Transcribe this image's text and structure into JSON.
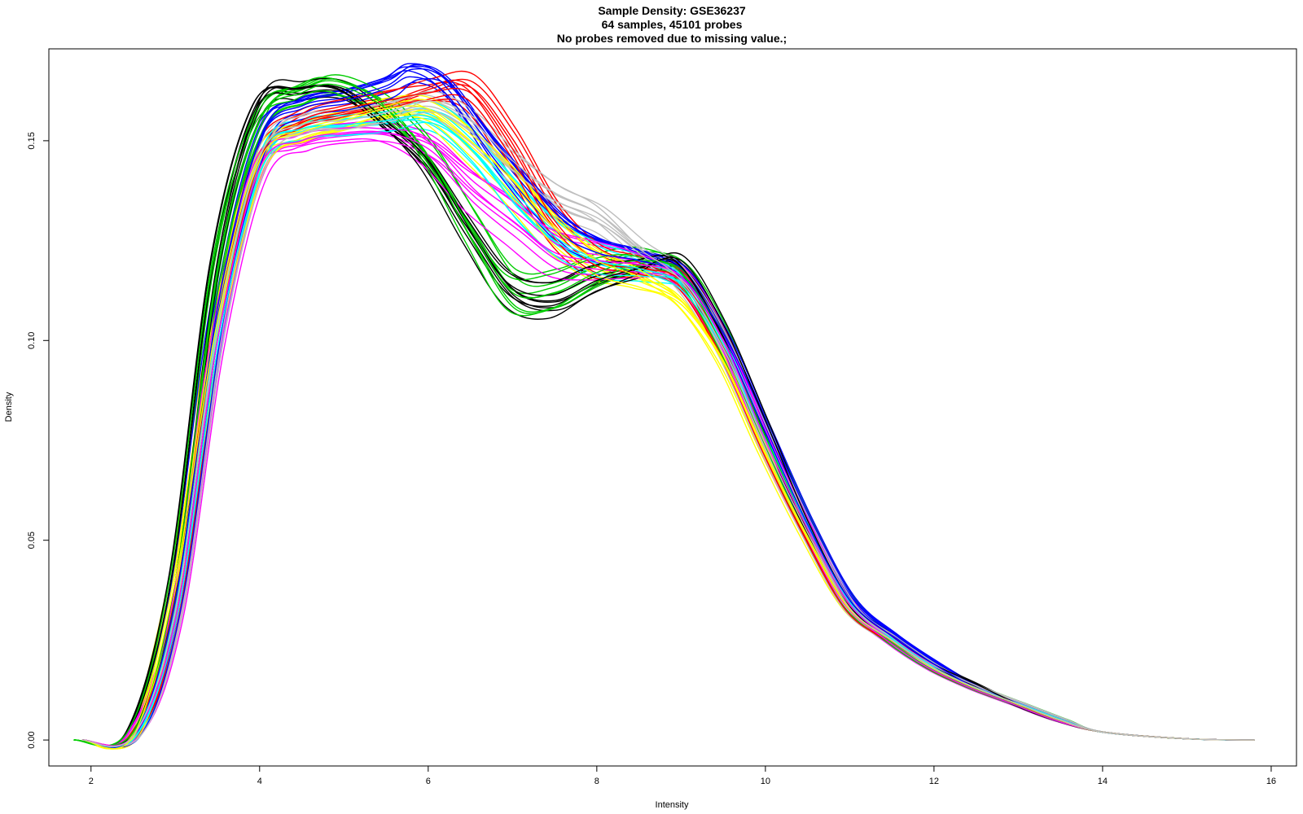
{
  "chart_data": {
    "type": "line",
    "title": "Sample Density: GSE36237",
    "subtitle_lines": [
      "64 samples, 45101 probes",
      "No probes removed due to missing value.;"
    ],
    "xlabel": "Intensity",
    "ylabel": "Density",
    "xlim": [
      1.5,
      16.3
    ],
    "ylim": [
      -0.0065,
      0.173
    ],
    "x_ticks": [
      2,
      4,
      6,
      8,
      10,
      12,
      14,
      16
    ],
    "x_tick_labels": [
      "2",
      "4",
      "6",
      "8",
      "10",
      "12",
      "14",
      "16"
    ],
    "y_ticks": [
      0,
      0.05,
      0.1,
      0.15
    ],
    "y_tick_labels": [
      "0.00",
      "0.05",
      "0.10",
      "0.15"
    ],
    "grid": false,
    "legend": "none",
    "sample_count": 64,
    "palette": [
      "#000000",
      "#ff0000",
      "#00cd00",
      "#0000ff",
      "#00ffff",
      "#ff00ff",
      "#ffff00",
      "#bebebe"
    ],
    "representative_curves": [
      {
        "color": "#000000",
        "points": [
          [
            1.9,
            0
          ],
          [
            2.5,
            0.002
          ],
          [
            3.0,
            0.04
          ],
          [
            3.5,
            0.12
          ],
          [
            4.0,
            0.159
          ],
          [
            4.5,
            0.163
          ],
          [
            5.0,
            0.163
          ],
          [
            5.5,
            0.155
          ],
          [
            6.0,
            0.145
          ],
          [
            6.5,
            0.128
          ],
          [
            7.0,
            0.113
          ],
          [
            7.5,
            0.11
          ],
          [
            8.0,
            0.115
          ],
          [
            8.5,
            0.118
          ],
          [
            9.0,
            0.12
          ],
          [
            9.5,
            0.104
          ],
          [
            10.0,
            0.08
          ],
          [
            10.5,
            0.055
          ],
          [
            11.0,
            0.035
          ],
          [
            11.5,
            0.026
          ],
          [
            12.0,
            0.019
          ],
          [
            12.5,
            0.014
          ],
          [
            13.0,
            0.009
          ],
          [
            13.5,
            0.005
          ],
          [
            14.0,
            0.002
          ],
          [
            15.0,
            0.0003
          ],
          [
            15.8,
            0
          ]
        ]
      },
      {
        "color": "#ff0000",
        "points": [
          [
            1.9,
            0
          ],
          [
            2.5,
            0.001
          ],
          [
            3.0,
            0.03
          ],
          [
            3.5,
            0.1
          ],
          [
            4.0,
            0.145
          ],
          [
            4.5,
            0.155
          ],
          [
            5.0,
            0.158
          ],
          [
            5.5,
            0.16
          ],
          [
            6.0,
            0.162
          ],
          [
            6.5,
            0.162
          ],
          [
            7.0,
            0.148
          ],
          [
            7.5,
            0.13
          ],
          [
            8.0,
            0.12
          ],
          [
            8.5,
            0.118
          ],
          [
            9.0,
            0.115
          ],
          [
            9.5,
            0.098
          ],
          [
            10.0,
            0.074
          ],
          [
            10.5,
            0.052
          ],
          [
            11.0,
            0.033
          ],
          [
            11.5,
            0.025
          ],
          [
            12.0,
            0.018
          ],
          [
            12.5,
            0.013
          ],
          [
            13.0,
            0.009
          ],
          [
            13.5,
            0.005
          ],
          [
            14.0,
            0.002
          ],
          [
            15.0,
            0.0003
          ],
          [
            15.8,
            0
          ]
        ]
      },
      {
        "color": "#00cd00",
        "points": [
          [
            1.8,
            0
          ],
          [
            2.5,
            0.002
          ],
          [
            3.0,
            0.04
          ],
          [
            3.5,
            0.118
          ],
          [
            4.0,
            0.155
          ],
          [
            4.5,
            0.162
          ],
          [
            4.9,
            0.164
          ],
          [
            5.5,
            0.158
          ],
          [
            6.0,
            0.146
          ],
          [
            6.5,
            0.128
          ],
          [
            7.0,
            0.112
          ],
          [
            7.5,
            0.112
          ],
          [
            8.0,
            0.117
          ],
          [
            8.5,
            0.12
          ],
          [
            9.0,
            0.117
          ],
          [
            9.5,
            0.1
          ],
          [
            10.0,
            0.076
          ],
          [
            10.5,
            0.053
          ],
          [
            11.0,
            0.034
          ],
          [
            11.5,
            0.025
          ],
          [
            12.0,
            0.018
          ],
          [
            12.5,
            0.013
          ],
          [
            13.0,
            0.009
          ],
          [
            13.5,
            0.005
          ],
          [
            14.0,
            0.002
          ],
          [
            15.0,
            0.0003
          ],
          [
            15.8,
            0
          ]
        ]
      },
      {
        "color": "#0000ff",
        "points": [
          [
            1.9,
            0
          ],
          [
            2.5,
            0.001
          ],
          [
            3.0,
            0.035
          ],
          [
            3.5,
            0.108
          ],
          [
            4.0,
            0.15
          ],
          [
            4.5,
            0.158
          ],
          [
            5.0,
            0.16
          ],
          [
            5.5,
            0.163
          ],
          [
            5.8,
            0.166
          ],
          [
            6.2,
            0.162
          ],
          [
            6.8,
            0.145
          ],
          [
            7.5,
            0.128
          ],
          [
            8.0,
            0.122
          ],
          [
            8.5,
            0.12
          ],
          [
            9.0,
            0.116
          ],
          [
            9.5,
            0.1
          ],
          [
            10.0,
            0.077
          ],
          [
            10.5,
            0.054
          ],
          [
            11.0,
            0.035
          ],
          [
            11.5,
            0.026
          ],
          [
            12.0,
            0.019
          ],
          [
            12.5,
            0.013
          ],
          [
            13.0,
            0.009
          ],
          [
            13.5,
            0.005
          ],
          [
            14.0,
            0.002
          ],
          [
            15.0,
            0.0003
          ],
          [
            15.8,
            0
          ]
        ]
      },
      {
        "color": "#00ffff",
        "points": [
          [
            1.9,
            0
          ],
          [
            2.5,
            0.001
          ],
          [
            3.0,
            0.033
          ],
          [
            3.5,
            0.104
          ],
          [
            4.0,
            0.146
          ],
          [
            4.5,
            0.153
          ],
          [
            5.0,
            0.154
          ],
          [
            5.5,
            0.155
          ],
          [
            6.0,
            0.156
          ],
          [
            6.5,
            0.148
          ],
          [
            7.0,
            0.135
          ],
          [
            7.5,
            0.125
          ],
          [
            8.0,
            0.12
          ],
          [
            8.5,
            0.118
          ],
          [
            9.0,
            0.114
          ],
          [
            9.5,
            0.098
          ],
          [
            10.0,
            0.075
          ],
          [
            10.5,
            0.053
          ],
          [
            11.0,
            0.034
          ],
          [
            11.5,
            0.025
          ],
          [
            12.0,
            0.018
          ],
          [
            12.5,
            0.013
          ],
          [
            13.0,
            0.009
          ],
          [
            13.5,
            0.005
          ],
          [
            14.0,
            0.002
          ],
          [
            15.0,
            0.0003
          ],
          [
            15.8,
            0
          ]
        ]
      },
      {
        "color": "#ff00ff",
        "points": [
          [
            1.9,
            0
          ],
          [
            2.5,
            0.001
          ],
          [
            3.0,
            0.03
          ],
          [
            3.5,
            0.1
          ],
          [
            4.0,
            0.143
          ],
          [
            4.5,
            0.15
          ],
          [
            5.0,
            0.152
          ],
          [
            5.5,
            0.152
          ],
          [
            6.0,
            0.148
          ],
          [
            6.5,
            0.138
          ],
          [
            7.0,
            0.13
          ],
          [
            7.5,
            0.122
          ],
          [
            8.0,
            0.12
          ],
          [
            8.5,
            0.119
          ],
          [
            9.0,
            0.116
          ],
          [
            9.5,
            0.1
          ],
          [
            10.0,
            0.075
          ],
          [
            10.5,
            0.053
          ],
          [
            11.0,
            0.034
          ],
          [
            11.5,
            0.025
          ],
          [
            12.0,
            0.018
          ],
          [
            12.5,
            0.013
          ],
          [
            13.0,
            0.009
          ],
          [
            13.5,
            0.005
          ],
          [
            14.0,
            0.002
          ],
          [
            15.0,
            0.0003
          ],
          [
            15.8,
            0
          ]
        ]
      },
      {
        "color": "#ffff00",
        "points": [
          [
            1.9,
            0
          ],
          [
            2.5,
            0.001
          ],
          [
            3.0,
            0.04
          ],
          [
            3.5,
            0.105
          ],
          [
            4.0,
            0.145
          ],
          [
            4.5,
            0.152
          ],
          [
            5.0,
            0.155
          ],
          [
            5.5,
            0.158
          ],
          [
            6.0,
            0.158
          ],
          [
            6.5,
            0.15
          ],
          [
            7.0,
            0.14
          ],
          [
            7.5,
            0.128
          ],
          [
            8.0,
            0.12
          ],
          [
            8.5,
            0.116
          ],
          [
            9.0,
            0.11
          ],
          [
            9.5,
            0.095
          ],
          [
            10.0,
            0.072
          ],
          [
            10.5,
            0.051
          ],
          [
            11.0,
            0.033
          ],
          [
            11.5,
            0.025
          ],
          [
            12.0,
            0.018
          ],
          [
            12.5,
            0.013
          ],
          [
            13.0,
            0.009
          ],
          [
            13.5,
            0.005
          ],
          [
            14.0,
            0.002
          ],
          [
            15.0,
            0.0003
          ],
          [
            15.8,
            0
          ]
        ]
      },
      {
        "color": "#bebebe",
        "points": [
          [
            1.9,
            0
          ],
          [
            2.5,
            0.001
          ],
          [
            3.0,
            0.032
          ],
          [
            3.5,
            0.103
          ],
          [
            4.0,
            0.146
          ],
          [
            4.5,
            0.154
          ],
          [
            5.0,
            0.155
          ],
          [
            5.5,
            0.157
          ],
          [
            6.0,
            0.16
          ],
          [
            6.5,
            0.155
          ],
          [
            7.0,
            0.145
          ],
          [
            7.5,
            0.137
          ],
          [
            8.0,
            0.132
          ],
          [
            8.5,
            0.123
          ],
          [
            9.0,
            0.115
          ],
          [
            9.5,
            0.098
          ],
          [
            10.0,
            0.074
          ],
          [
            10.5,
            0.052
          ],
          [
            11.0,
            0.033
          ],
          [
            11.5,
            0.025
          ],
          [
            12.0,
            0.018
          ],
          [
            12.5,
            0.013
          ],
          [
            13.0,
            0.009
          ],
          [
            13.5,
            0.005
          ],
          [
            14.0,
            0.002
          ],
          [
            15.0,
            0.0003
          ],
          [
            15.8,
            0
          ]
        ]
      }
    ]
  }
}
